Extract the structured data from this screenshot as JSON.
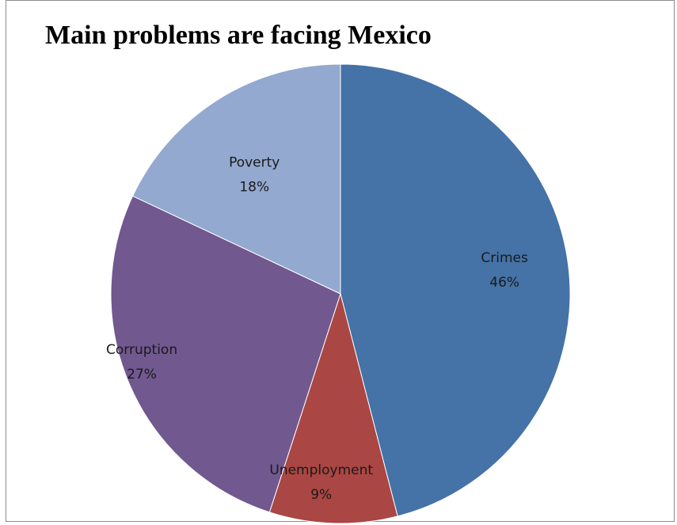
{
  "chart_data": {
    "type": "pie",
    "title": "Main problems are facing Mexico",
    "slices": [
      {
        "label": "Crimes",
        "value": 46,
        "percent_label": "46%",
        "color": "#4572A7"
      },
      {
        "label": "Unemployment",
        "value": 9,
        "percent_label": "9%",
        "color": "#AA4643"
      },
      {
        "label": "Corruption",
        "value": 27,
        "percent_label": "27%",
        "color": "#71588F"
      },
      {
        "label": "Poverty",
        "value": 18,
        "percent_label": "18%",
        "color": "#93A9CF"
      }
    ],
    "start_angle": "12 o'clock",
    "direction": "clockwise",
    "legend": "none",
    "labels_inside": true
  }
}
